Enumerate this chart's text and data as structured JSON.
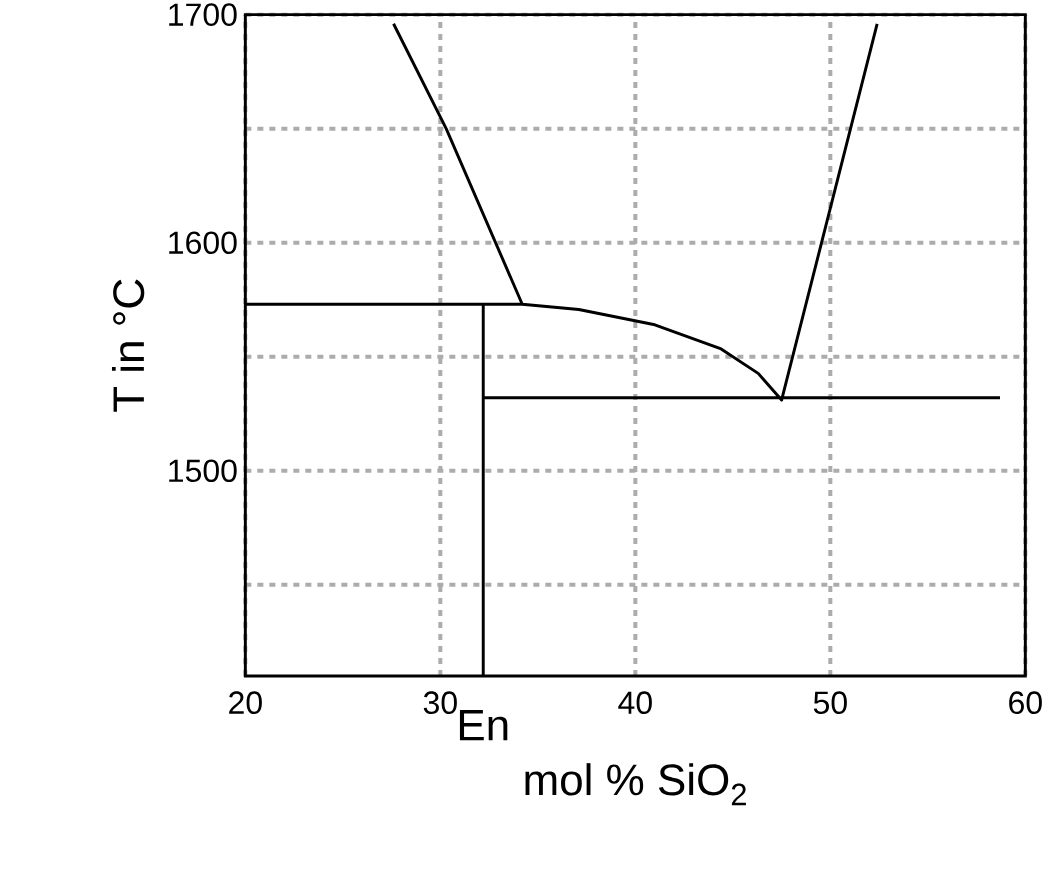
{
  "chart_data": {
    "type": "line",
    "xlabel": "mol % SiO$_{2}$",
    "ylabel": "T in °C",
    "xlim": [
      20,
      60
    ],
    "ylim": [
      1410,
      1700
    ],
    "xticks": [
      20,
      30,
      40,
      50,
      60
    ],
    "yticks": [
      {
        "value": 1450,
        "label": null
      },
      1500,
      {
        "value": 1550,
        "label": null
      },
      1600,
      {
        "value": 1650,
        "label": null
      },
      1700
    ],
    "grid": true,
    "series": [
      {
        "color": "#000000",
        "x": [
          27.6,
          30.3,
          34.2,
          37.1,
          41.0,
          44.4,
          46.3,
          47.5,
          52.4,
          null,
          20,
          34.2,
          null,
          32.2,
          32.2,
          null,
          32.2,
          58.7
        ],
        "values": [
          1696,
          1650,
          1573,
          1570.7,
          1564,
          1553.4,
          1542.7,
          1531,
          1696,
          null,
          1573,
          1573,
          null,
          1573,
          1410,
          null,
          1532,
          1532
        ]
      }
    ],
    "annotations": [
      {
        "text": "En",
        "x": 32.2,
        "y": 1410
      }
    ]
  }
}
